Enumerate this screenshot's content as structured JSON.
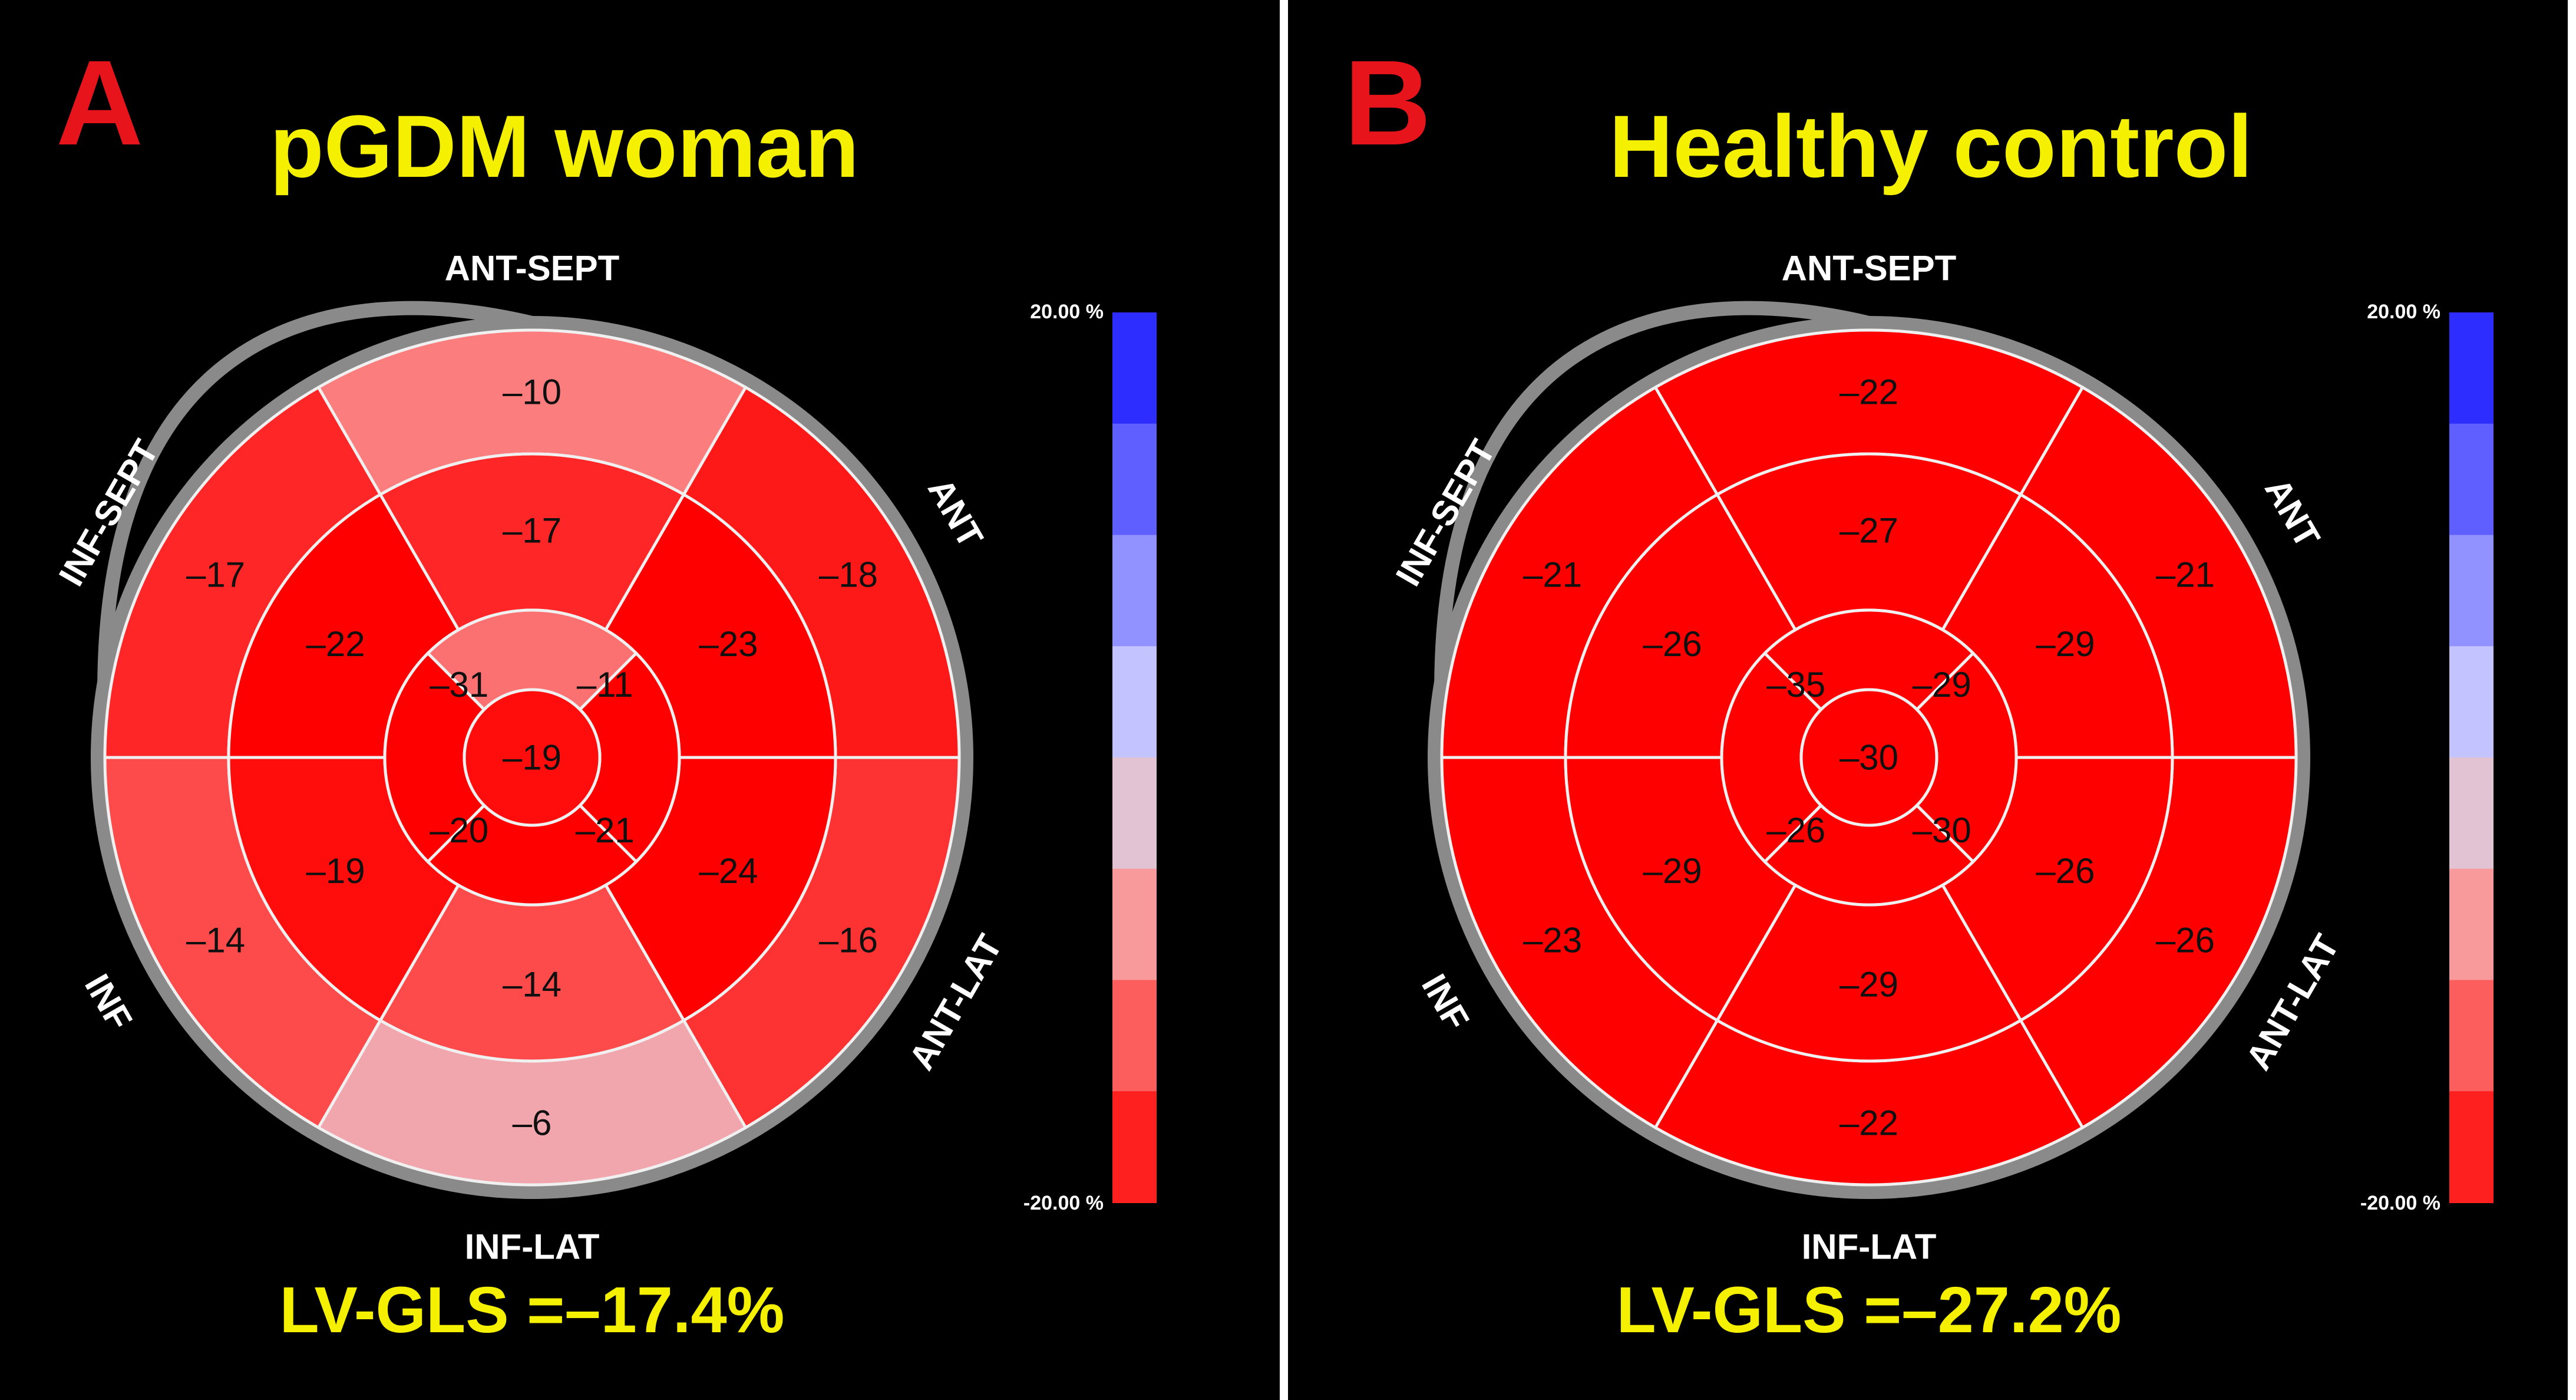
{
  "colors": {
    "title": "#f4f000",
    "letter": "#e8141b",
    "label": "#ffffff",
    "panel_bg": "#000000",
    "ring": "#8a8a8a",
    "grid": "#f0f0f0",
    "value_text": "#101010"
  },
  "panels": [
    {
      "letter": "A",
      "title": "pGDM woman",
      "gls": "LV-GLS =–17.4%",
      "scale_top": "20.00 %",
      "scale_bottom": "-20.00 %",
      "wall_labels": [
        "ANT-SEPT",
        "ANT",
        "ANT-LAT",
        "INF-LAT",
        "INF",
        "INF-SEPT"
      ],
      "segments": {
        "basal": [
          "–10",
          "–18",
          "–16",
          "–6",
          "–14",
          "–17"
        ],
        "mid": [
          "–17",
          "–23",
          "–24",
          "–14",
          "–19",
          "–22"
        ],
        "apical": [
          "–11",
          "–21",
          "–20",
          "–31"
        ],
        "apex": "–19"
      },
      "segment_strain": {
        "basal": [
          -10,
          -18,
          -16,
          -6,
          -14,
          -17
        ],
        "mid": [
          -17,
          -23,
          -24,
          -14,
          -19,
          -22
        ],
        "apical": [
          -11,
          -21,
          -20,
          -31
        ],
        "apex": -19
      }
    },
    {
      "letter": "B",
      "title": "Healthy control",
      "gls": "LV-GLS =–27.2%",
      "scale_top": "20.00 %",
      "scale_bottom": "-20.00 %",
      "wall_labels": [
        "ANT-SEPT",
        "ANT",
        "ANT-LAT",
        "INF-LAT",
        "INF",
        "INF-SEPT"
      ],
      "segments": {
        "basal": [
          "–22",
          "–21",
          "–26",
          "–22",
          "–23",
          "–21"
        ],
        "mid": [
          "–27",
          "–29",
          "–26",
          "–29",
          "–29",
          "–26"
        ],
        "apical": [
          "–29",
          "–30",
          "–26",
          "–35"
        ],
        "apex": "–30"
      },
      "segment_strain": {
        "basal": [
          -22,
          -21,
          -26,
          -22,
          -23,
          -21
        ],
        "mid": [
          -27,
          -29,
          -26,
          -29,
          -29,
          -26
        ],
        "apical": [
          -29,
          -30,
          -26,
          -35
        ],
        "apex": -30
      }
    }
  ]
}
